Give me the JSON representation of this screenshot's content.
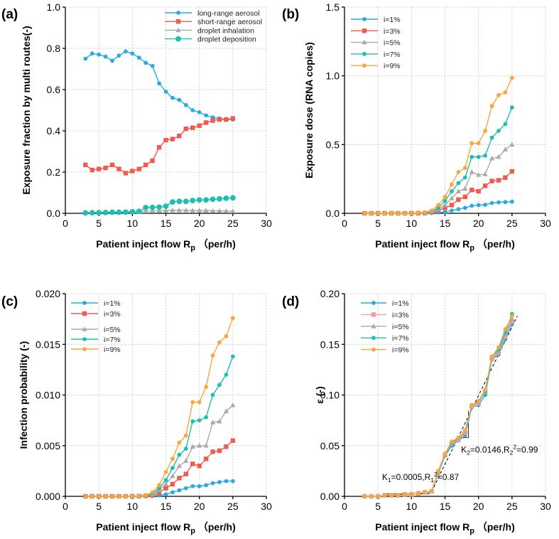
{
  "colors": {
    "blue": "#29ABE2",
    "red": "#EF5B4C",
    "gray": "#A9A9A9",
    "teal": "#1DBFAF",
    "orange": "#F7A73B",
    "pink": "#F4A0A0"
  },
  "chart_data": [
    {
      "panel": "(a)",
      "type": "line",
      "xlabel": "Patient inject flow R",
      "xlabel_sub": "p",
      "xlabel_unit": "（per/h)",
      "ylabel": "Exposure fraction by multi routes(-)",
      "xlim": [
        0,
        30
      ],
      "ylim": [
        0,
        1.0
      ],
      "xticks": [
        "0",
        "5",
        "10",
        "15",
        "20",
        "25",
        "30"
      ],
      "yticks": [
        "0.0",
        "0.2",
        "0.4",
        "0.6",
        "0.8",
        "1.0"
      ],
      "x": [
        3,
        4,
        5,
        6,
        7,
        8,
        9,
        10,
        11,
        12,
        13,
        14,
        15,
        16,
        17,
        18,
        19,
        20,
        21,
        22,
        23,
        24,
        25
      ],
      "series": [
        {
          "name": "long-range aerosol",
          "color": "#29ABE2",
          "marker": "circle",
          "values": [
            0.75,
            0.775,
            0.77,
            0.76,
            0.74,
            0.765,
            0.785,
            0.775,
            0.755,
            0.73,
            0.715,
            0.63,
            0.59,
            0.56,
            0.55,
            0.525,
            0.5,
            0.49,
            0.475,
            0.465,
            0.46,
            0.455,
            0.455
          ]
        },
        {
          "name": "short-range aerosol",
          "color": "#EF5B4C",
          "marker": "square",
          "values": [
            0.235,
            0.21,
            0.215,
            0.22,
            0.235,
            0.215,
            0.195,
            0.205,
            0.215,
            0.235,
            0.255,
            0.32,
            0.355,
            0.36,
            0.375,
            0.41,
            0.415,
            0.425,
            0.44,
            0.45,
            0.455,
            0.455,
            0.46
          ]
        },
        {
          "name": "droplet inhalation",
          "color": "#A9A9A9",
          "marker": "triangle",
          "values": [
            0.003,
            0.004,
            0.004,
            0.005,
            0.006,
            0.006,
            0.007,
            0.008,
            0.009,
            0.01,
            0.011,
            0.013,
            0.014,
            0.015,
            0.015,
            0.015,
            0.014,
            0.014,
            0.013,
            0.012,
            0.012,
            0.011,
            0.01
          ]
        },
        {
          "name": "droplet deposition",
          "color": "#1DBFAF",
          "marker": "bigcircle",
          "values": [
            0.002,
            0.003,
            0.003,
            0.004,
            0.005,
            0.005,
            0.006,
            0.008,
            0.01,
            0.028,
            0.029,
            0.03,
            0.035,
            0.055,
            0.058,
            0.058,
            0.062,
            0.065,
            0.065,
            0.068,
            0.07,
            0.073,
            0.075
          ]
        }
      ]
    },
    {
      "panel": "(b)",
      "type": "line",
      "xlabel": "Patient inject flow R",
      "xlabel_sub": "p",
      "xlabel_unit": "（per/h)",
      "ylabel": "Exposure dose (RNA copies)",
      "xlim": [
        0,
        30
      ],
      "ylim": [
        0,
        1.5
      ],
      "xticks": [
        "0",
        "5",
        "10",
        "15",
        "20",
        "25",
        "30"
      ],
      "yticks": [
        "0.0",
        "0.5",
        "1.0",
        "1.5"
      ],
      "x": [
        3,
        4,
        5,
        6,
        7,
        8,
        9,
        10,
        11,
        12,
        13,
        14,
        15,
        16,
        17,
        18,
        19,
        20,
        21,
        22,
        23,
        24,
        25
      ],
      "series": [
        {
          "name": "i=1%",
          "color": "#29ABE2",
          "marker": "circle",
          "values": [
            0,
            0,
            0,
            0,
            0,
            0,
            0,
            0,
            0,
            0.001,
            0.003,
            0.006,
            0.01,
            0.02,
            0.03,
            0.04,
            0.055,
            0.06,
            0.062,
            0.075,
            0.08,
            0.082,
            0.085
          ]
        },
        {
          "name": "i=3%",
          "color": "#EF5B4C",
          "marker": "square",
          "values": [
            0,
            0,
            0,
            0,
            0,
            0,
            0,
            0,
            0.001,
            0.002,
            0.008,
            0.02,
            0.04,
            0.06,
            0.1,
            0.12,
            0.17,
            0.16,
            0.2,
            0.235,
            0.24,
            0.26,
            0.305
          ]
        },
        {
          "name": "i=5%",
          "color": "#A9A9A9",
          "marker": "triangle",
          "values": [
            0,
            0,
            0,
            0,
            0,
            0,
            0,
            0,
            0.002,
            0.004,
            0.012,
            0.03,
            0.06,
            0.11,
            0.16,
            0.18,
            0.3,
            0.28,
            0.285,
            0.4,
            0.41,
            0.465,
            0.5
          ]
        },
        {
          "name": "i=7%",
          "color": "#1DBFAF",
          "marker": "circle",
          "values": [
            0,
            0,
            0,
            0,
            0,
            0,
            0,
            0,
            0.002,
            0.005,
            0.015,
            0.04,
            0.09,
            0.16,
            0.22,
            0.26,
            0.41,
            0.41,
            0.42,
            0.55,
            0.6,
            0.65,
            0.77
          ]
        },
        {
          "name": "i=9%",
          "color": "#F7A73B",
          "marker": "circle",
          "values": [
            0,
            0,
            0,
            0,
            0,
            0,
            0,
            0,
            0.003,
            0.007,
            0.02,
            0.06,
            0.12,
            0.21,
            0.3,
            0.33,
            0.51,
            0.51,
            0.6,
            0.78,
            0.86,
            0.88,
            0.985
          ]
        }
      ]
    },
    {
      "panel": "(c)",
      "type": "line",
      "xlabel": "Patient inject flow R",
      "xlabel_sub": "p",
      "xlabel_unit": "（per/h)",
      "ylabel": "Infection probability (-)",
      "xlim": [
        0,
        30
      ],
      "ylim": [
        0,
        0.02
      ],
      "xticks": [
        "0",
        "5",
        "10",
        "15",
        "20",
        "25",
        "30"
      ],
      "yticks": [
        "0.000",
        "0.005",
        "0.010",
        "0.015",
        "0.020"
      ],
      "x": [
        3,
        4,
        5,
        6,
        7,
        8,
        9,
        10,
        11,
        12,
        13,
        14,
        15,
        16,
        17,
        18,
        19,
        20,
        21,
        22,
        23,
        24,
        25
      ],
      "series": [
        {
          "name": "i=1%",
          "color": "#29ABE2",
          "marker": "circle",
          "values": [
            0,
            0,
            0,
            0,
            0,
            0,
            0,
            0,
            0,
            2e-05,
            5e-05,
            0.0001,
            0.0002,
            0.0004,
            0.0006,
            0.0008,
            0.001,
            0.001,
            0.0011,
            0.0013,
            0.0014,
            0.0015,
            0.0015
          ]
        },
        {
          "name": "i=3%",
          "color": "#EF5B4C",
          "marker": "square",
          "values": [
            0,
            0,
            0,
            0,
            0,
            0,
            0,
            0,
            2e-05,
            5e-05,
            0.0001,
            0.0004,
            0.0008,
            0.0012,
            0.0018,
            0.0022,
            0.0032,
            0.003,
            0.0037,
            0.0044,
            0.0045,
            0.0049,
            0.0055
          ]
        },
        {
          "name": "i=5%",
          "color": "#A9A9A9",
          "marker": "triangle",
          "values": [
            0,
            0,
            0,
            0,
            0,
            0,
            0,
            0,
            3e-05,
            8e-05,
            0.0002,
            0.0006,
            0.0012,
            0.002,
            0.003,
            0.0035,
            0.0049,
            0.005,
            0.005,
            0.0073,
            0.0074,
            0.0084,
            0.009
          ]
        },
        {
          "name": "i=7%",
          "color": "#1DBFAF",
          "marker": "circle",
          "values": [
            0,
            0,
            0,
            0,
            0,
            0,
            0,
            0,
            4e-05,
            0.0001,
            0.0003,
            0.0008,
            0.0016,
            0.0028,
            0.0041,
            0.0047,
            0.0074,
            0.0075,
            0.0078,
            0.01,
            0.011,
            0.012,
            0.0138
          ]
        },
        {
          "name": "i=9%",
          "color": "#F7A73B",
          "marker": "circle",
          "values": [
            0,
            0,
            0,
            0,
            0,
            0,
            0,
            0,
            5e-05,
            0.00012,
            0.0004,
            0.0011,
            0.0024,
            0.0037,
            0.0053,
            0.006,
            0.0093,
            0.0093,
            0.0108,
            0.0139,
            0.0152,
            0.0158,
            0.0176
          ]
        }
      ]
    },
    {
      "panel": "(d)",
      "type": "line",
      "xlabel": "Patient inject flow R",
      "xlabel_sub": "p",
      "xlabel_unit": "（per/h)",
      "ylabel": "ε (-)",
      "xlim": [
        0,
        30
      ],
      "ylim": [
        0,
        0.2
      ],
      "xticks": [
        "0",
        "5",
        "10",
        "15",
        "20",
        "25",
        "30"
      ],
      "yticks": [
        "0.00",
        "0.05",
        "0.10",
        "0.15",
        "0.20"
      ],
      "x": [
        3,
        4,
        5,
        6,
        7,
        8,
        9,
        10,
        11,
        12,
        13,
        14,
        15,
        16,
        17,
        18,
        19,
        20,
        21,
        22,
        23,
        24,
        25
      ],
      "series": [
        {
          "name": "i=1%",
          "color": "#29ABE2",
          "marker": "circle",
          "values": [
            0,
            0,
            0,
            0.001,
            0.001,
            0.001,
            0.002,
            0.002,
            0.003,
            0.004,
            0.005,
            0.023,
            0.04,
            0.05,
            0.055,
            0.06,
            0.088,
            0.09,
            0.1,
            0.135,
            0.14,
            0.155,
            0.17
          ]
        },
        {
          "name": "i=3%",
          "color": "#F4A0A0",
          "marker": "square",
          "values": [
            0,
            0,
            0,
            0.001,
            0.001,
            0.001,
            0.002,
            0.002,
            0.003,
            0.004,
            0.005,
            0.024,
            0.041,
            0.052,
            0.056,
            0.063,
            0.089,
            0.092,
            0.104,
            0.136,
            0.142,
            0.158,
            0.173
          ]
        },
        {
          "name": "i=5%",
          "color": "#A9A9A9",
          "marker": "triangle",
          "values": [
            0,
            0,
            0,
            0.001,
            0.001,
            0.001,
            0.002,
            0.002,
            0.003,
            0.004,
            0.005,
            0.024,
            0.041,
            0.052,
            0.057,
            0.064,
            0.09,
            0.093,
            0.103,
            0.137,
            0.143,
            0.16,
            0.175
          ]
        },
        {
          "name": "i=7%",
          "color": "#1DBFAF",
          "marker": "circle",
          "values": [
            0,
            0,
            0,
            0.001,
            0.001,
            0.001,
            0.002,
            0.002,
            0.003,
            0.004,
            0.005,
            0.025,
            0.042,
            0.053,
            0.058,
            0.065,
            0.09,
            0.094,
            0.104,
            0.138,
            0.145,
            0.162,
            0.18
          ]
        },
        {
          "name": "i=9%",
          "color": "#F7A73B",
          "marker": "circle",
          "values": [
            0,
            0,
            0,
            0.001,
            0.001,
            0.001,
            0.002,
            0.002,
            0.003,
            0.004,
            0.005,
            0.025,
            0.042,
            0.054,
            0.058,
            0.065,
            0.09,
            0.094,
            0.105,
            0.138,
            0.147,
            0.165,
            0.178
          ]
        }
      ],
      "fit_lines": [
        {
          "name": "fit-1",
          "x": [
            5.5,
            13
          ],
          "y": [
            0,
            0.0045
          ]
        },
        {
          "name": "fit-2",
          "x": [
            13,
            25.8
          ],
          "y": [
            0.0045,
            0.178
          ]
        }
      ],
      "annotations": [
        {
          "name": "k1",
          "parts": [
            [
              "K",
              ""
            ],
            [
              "1",
              "sub"
            ],
            [
              "=0.0005,R",
              ""
            ],
            [
              "1",
              "sub"
            ],
            [
              "2",
              "sup"
            ],
            [
              "=0.87",
              ""
            ]
          ],
          "x": 5.6,
          "y": 0.016
        },
        {
          "name": "k2",
          "parts": [
            [
              "K",
              ""
            ],
            [
              "2",
              "sub"
            ],
            [
              "=0.0146,R",
              ""
            ],
            [
              "2",
              "sub"
            ],
            [
              "2",
              "sup"
            ],
            [
              "=0.99",
              ""
            ]
          ],
          "x": 17.4,
          "y": 0.043
        }
      ]
    }
  ]
}
